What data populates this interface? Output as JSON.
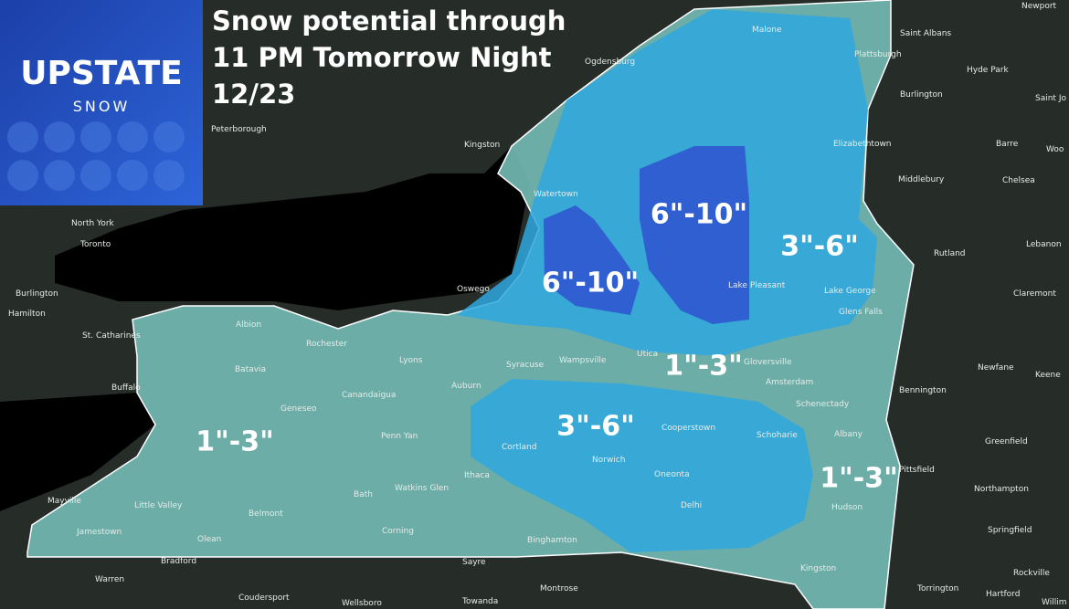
{
  "logo": {
    "title": "UPSTATE",
    "subtitle": "SNOW"
  },
  "header": {
    "lines": [
      "Snow potential through",
      "11 PM Tomorrow Night",
      "12/23"
    ]
  },
  "zones": [
    {
      "label": "6\"-10\""
    },
    {
      "label": "6\"-10\""
    },
    {
      "label": "3\"-6\""
    },
    {
      "label": "1\"-3\""
    },
    {
      "label": "3\"-6\""
    },
    {
      "label": "1\"-3\""
    },
    {
      "label": "1\"-3\""
    }
  ],
  "places": [
    {
      "name": "Newport"
    },
    {
      "name": "Saint Albans"
    },
    {
      "name": "Hyde Park"
    },
    {
      "name": "Plattsburgh"
    },
    {
      "name": "Malone"
    },
    {
      "name": "Ogdensburg"
    },
    {
      "name": "Burlington"
    },
    {
      "name": "Saint Jo"
    },
    {
      "name": "Peterborough"
    },
    {
      "name": "Kingston"
    },
    {
      "name": "Elizabethtown"
    },
    {
      "name": "Barre"
    },
    {
      "name": "Woo"
    },
    {
      "name": "Middlebury"
    },
    {
      "name": "Chelsea"
    },
    {
      "name": "Watertown"
    },
    {
      "name": "North York"
    },
    {
      "name": "Toronto"
    },
    {
      "name": "Lebanon"
    },
    {
      "name": "Rutland"
    },
    {
      "name": "Burlington"
    },
    {
      "name": "Hamilton"
    },
    {
      "name": "Oswego"
    },
    {
      "name": "Lake Pleasant"
    },
    {
      "name": "Lake George"
    },
    {
      "name": "Claremont"
    },
    {
      "name": "Glens Falls"
    },
    {
      "name": "St. Catharines"
    },
    {
      "name": "Albion"
    },
    {
      "name": "Rochester"
    },
    {
      "name": "Utica"
    },
    {
      "name": "Gloversville"
    },
    {
      "name": "Lyons"
    },
    {
      "name": "Syracuse"
    },
    {
      "name": "Wampsville"
    },
    {
      "name": "Newfane"
    },
    {
      "name": "Batavia"
    },
    {
      "name": "Keene"
    },
    {
      "name": "Amsterdam"
    },
    {
      "name": "Buffalo"
    },
    {
      "name": "Auburn"
    },
    {
      "name": "Bennington"
    },
    {
      "name": "Canandaigua"
    },
    {
      "name": "Geneseo"
    },
    {
      "name": "Schenectady"
    },
    {
      "name": "Albany"
    },
    {
      "name": "Penn Yan"
    },
    {
      "name": "Cooperstown"
    },
    {
      "name": "Schoharie"
    },
    {
      "name": "Greenfield"
    },
    {
      "name": "Cortland"
    },
    {
      "name": "Norwich"
    },
    {
      "name": "Pittsfield"
    },
    {
      "name": "Oneonta"
    },
    {
      "name": "Ithaca"
    },
    {
      "name": "Bath"
    },
    {
      "name": "Watkins Glen"
    },
    {
      "name": "Northampton"
    },
    {
      "name": "Delhi"
    },
    {
      "name": "Mayville"
    },
    {
      "name": "Little Valley"
    },
    {
      "name": "Belmont"
    },
    {
      "name": "Hudson"
    },
    {
      "name": "Jamestown"
    },
    {
      "name": "Springfield"
    },
    {
      "name": "Corning"
    },
    {
      "name": "Olean"
    },
    {
      "name": "Binghamton"
    },
    {
      "name": "Bradford"
    },
    {
      "name": "Sayre"
    },
    {
      "name": "Kingston"
    },
    {
      "name": "Warren"
    },
    {
      "name": "Montrose"
    },
    {
      "name": "Torrington"
    },
    {
      "name": "Hartford"
    },
    {
      "name": "Rockville"
    },
    {
      "name": "Coudersport"
    },
    {
      "name": "Wellsboro"
    },
    {
      "name": "Towanda"
    },
    {
      "name": "Willim"
    }
  ]
}
